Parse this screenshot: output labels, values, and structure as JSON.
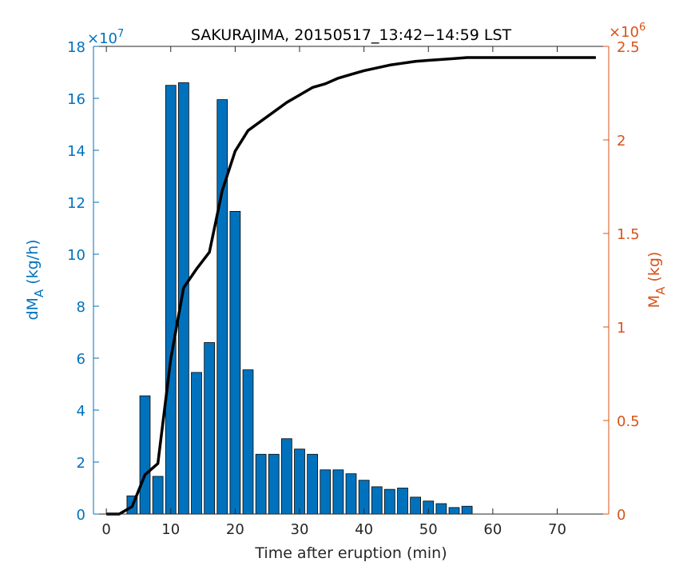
{
  "chart_data": {
    "type": "bar",
    "title": "SAKURAJIMA, 20150517_13:42−14:59 LST",
    "xlabel": "Time after eruption (min)",
    "xlim": [
      -2,
      78
    ],
    "xticks": [
      0,
      10,
      20,
      30,
      40,
      50,
      60,
      70
    ],
    "left_axis": {
      "label_main": "dM",
      "label_sub": "A",
      "label_unit": " (kg/h)",
      "exponent_base": "×10",
      "exponent_power": "7",
      "ylim": [
        0,
        18
      ],
      "ticks": [
        0,
        2,
        4,
        6,
        8,
        10,
        12,
        14,
        16,
        18
      ],
      "color": "#0072BD"
    },
    "right_axis": {
      "label_main": "M",
      "label_sub": "A",
      "label_unit": " (kg)",
      "exponent_base": "×10",
      "exponent_power": "6",
      "ylim": [
        0,
        2.5
      ],
      "ticks": [
        0,
        0.5,
        1,
        1.5,
        2,
        2.5
      ],
      "tick_labels": [
        "0",
        "0.5",
        "1",
        "1.5",
        "2",
        "2.5"
      ],
      "color": "#D95319"
    },
    "bars": {
      "color": "#0072BD",
      "x": [
        4,
        6,
        8,
        10,
        12,
        14,
        16,
        18,
        20,
        22,
        24,
        26,
        28,
        30,
        32,
        34,
        36,
        38,
        40,
        42,
        44,
        46,
        48,
        50,
        52,
        54,
        56
      ],
      "values": [
        0.7,
        4.55,
        1.45,
        16.5,
        16.6,
        5.45,
        6.6,
        15.95,
        11.65,
        5.55,
        2.3,
        2.3,
        2.9,
        2.5,
        2.3,
        1.7,
        1.7,
        1.55,
        1.3,
        1.05,
        0.95,
        1.0,
        0.65,
        0.5,
        0.4,
        0.25,
        0.3
      ]
    },
    "line": {
      "color": "#000000",
      "x": [
        0,
        2,
        4,
        6,
        8,
        10,
        12,
        14,
        16,
        18,
        20,
        22,
        24,
        26,
        28,
        30,
        32,
        34,
        36,
        38,
        40,
        42,
        44,
        46,
        48,
        50,
        52,
        54,
        56,
        58,
        60,
        62,
        64,
        66,
        68,
        70,
        72,
        74,
        76
      ],
      "values": [
        0,
        0,
        0.04,
        0.21,
        0.27,
        0.83,
        1.21,
        1.31,
        1.4,
        1.73,
        1.94,
        2.05,
        2.1,
        2.15,
        2.2,
        2.24,
        2.28,
        2.3,
        2.33,
        2.35,
        2.37,
        2.385,
        2.4,
        2.41,
        2.42,
        2.425,
        2.43,
        2.435,
        2.44,
        2.44,
        2.44,
        2.44,
        2.44,
        2.44,
        2.44,
        2.44,
        2.44,
        2.44,
        2.44
      ]
    }
  }
}
